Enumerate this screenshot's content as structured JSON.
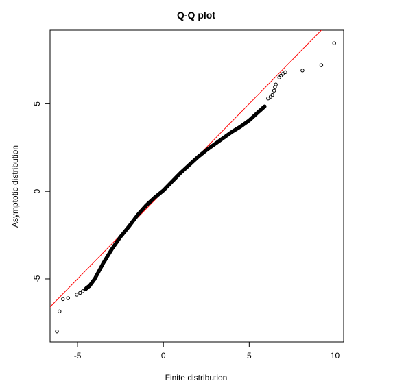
{
  "chart_data": {
    "type": "scatter",
    "title": "Q-Q plot",
    "xlabel": "Finite distribution",
    "ylabel": "Asymptotic distribution",
    "xlim": [
      -6.6,
      10.5
    ],
    "ylim": [
      -8.6,
      9.2
    ],
    "x_ticks": [
      -5,
      0,
      5,
      10
    ],
    "y_ticks": [
      -5,
      0,
      5
    ],
    "grid": false,
    "reference_line": {
      "intercept": 0,
      "slope": 1,
      "color": "#ff0000"
    },
    "series": [
      {
        "marker": "open-circle",
        "color": "#000000",
        "x": [
          -6.2,
          -6.05,
          -5.85,
          -5.55,
          -5.05,
          -4.85,
          -4.7,
          -4.55,
          -4.5,
          -4.45,
          -4.3,
          -4.0,
          -3.5,
          -3.0,
          -2.5,
          -2.0,
          -1.5,
          -1.0,
          -0.5,
          0.0,
          0.5,
          1.0,
          1.5,
          2.0,
          2.5,
          3.0,
          3.5,
          4.0,
          4.5,
          5.0,
          5.5,
          5.9,
          6.1,
          6.25,
          6.35,
          6.45,
          6.5,
          6.55,
          6.75,
          6.85,
          6.95,
          7.1,
          8.1,
          9.2,
          9.95
        ],
        "y": [
          -8.0,
          -6.85,
          -6.15,
          -6.1,
          -5.9,
          -5.8,
          -5.7,
          -5.6,
          -5.55,
          -5.5,
          -5.4,
          -5.0,
          -4.1,
          -3.3,
          -2.6,
          -2.0,
          -1.35,
          -0.8,
          -0.35,
          0.05,
          0.55,
          1.05,
          1.5,
          1.95,
          2.35,
          2.7,
          3.05,
          3.4,
          3.7,
          4.05,
          4.5,
          4.85,
          5.3,
          5.4,
          5.5,
          5.75,
          5.95,
          6.1,
          6.5,
          6.6,
          6.7,
          6.8,
          6.9,
          7.2,
          8.45
        ]
      }
    ]
  }
}
